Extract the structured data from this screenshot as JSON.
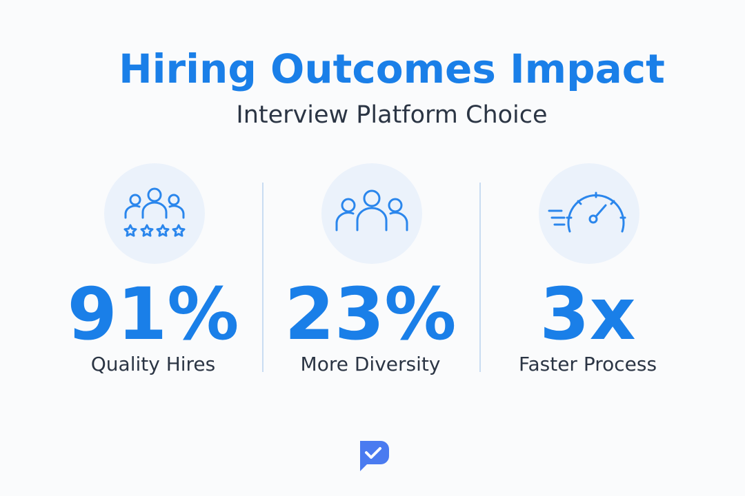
{
  "header": {
    "title": "Hiring Outcomes Impact",
    "subtitle": "Interview Platform Choice"
  },
  "stats": [
    {
      "value": "91%",
      "label": "Quality Hires"
    },
    {
      "value": "23%",
      "label": "More Diversity"
    },
    {
      "value": "3x",
      "label": "Faster Process"
    }
  ]
}
